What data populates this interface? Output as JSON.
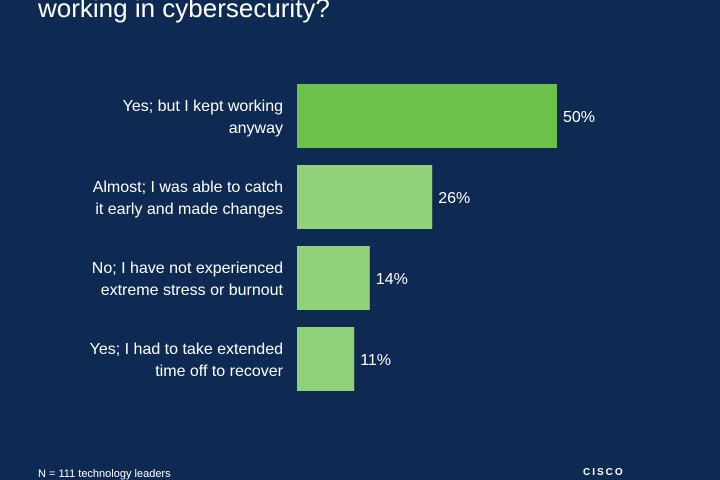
{
  "header": {
    "title": "working in cybersecurity?"
  },
  "chart_data": {
    "type": "bar",
    "orientation": "horizontal",
    "categories": [
      [
        "Yes; but I kept working",
        "anyway"
      ],
      [
        "Almost; I was able to catch",
        "it early and made changes"
      ],
      [
        "No; I have not experienced",
        "extreme stress or burnout"
      ],
      [
        "Yes; I had to take extended",
        "time off to recover"
      ]
    ],
    "values": [
      50,
      26,
      14,
      11
    ],
    "value_labels": [
      "50%",
      "26%",
      "14%",
      "11%"
    ],
    "xlim": [
      0,
      50
    ],
    "grid": false,
    "colors": [
      "#6cc24a",
      "#8fd27a",
      "#8fd27a",
      "#8fd27a"
    ]
  },
  "footer": {
    "note": "N = 111 technology leaders",
    "logo": "CISCO"
  }
}
